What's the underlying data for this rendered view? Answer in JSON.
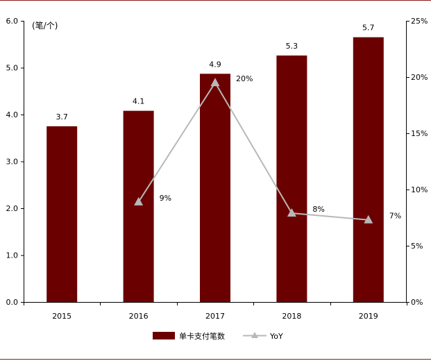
{
  "chart_data": {
    "type": "bar",
    "categories": [
      "2015",
      "2016",
      "2017",
      "2018",
      "2019"
    ],
    "series": [
      {
        "name": "单卡支付笔数",
        "type": "bar",
        "axis": "left",
        "values": [
          3.75,
          4.08,
          4.87,
          5.26,
          5.65
        ],
        "labels": [
          "3.7",
          "4.1",
          "4.9",
          "5.3",
          "5.7"
        ],
        "color": "#6b0000"
      },
      {
        "name": "YoY",
        "type": "line",
        "axis": "right",
        "values": [
          null,
          0.089,
          0.195,
          0.079,
          0.073
        ],
        "labels": [
          null,
          "9%",
          "20%",
          "8%",
          "7%"
        ],
        "color": "#b8b8b8"
      }
    ],
    "y_left": {
      "unit_label": "(笔/个)",
      "ylim": [
        0,
        6
      ],
      "ticks": [
        "0.0",
        "1.0",
        "2.0",
        "3.0",
        "4.0",
        "5.0",
        "6.0"
      ]
    },
    "y_right": {
      "ylim": [
        0,
        0.25
      ],
      "ticks": [
        "0%",
        "5%",
        "10%",
        "15%",
        "20%",
        "25%"
      ]
    },
    "grid": false,
    "legend_position": "bottom"
  }
}
